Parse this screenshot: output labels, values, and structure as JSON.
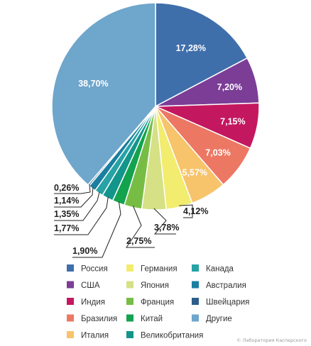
{
  "chart_data": {
    "type": "pie",
    "start": "12 o'clock",
    "direction": "clockwise",
    "slices": [
      {
        "category": "Россия",
        "value": 17.28,
        "label": "17,28%",
        "color": "#3f6fab",
        "label_style": "inside"
      },
      {
        "category": "США",
        "value": 7.2,
        "label": "7,20%",
        "color": "#7b3d96",
        "label_style": "inside"
      },
      {
        "category": "Индия",
        "value": 7.15,
        "label": "7,15%",
        "color": "#c3185f",
        "label_style": "inside"
      },
      {
        "category": "Бразилия",
        "value": 7.03,
        "label": "7,03%",
        "color": "#ec7864",
        "label_style": "inside"
      },
      {
        "category": "Италия",
        "value": 5.57,
        "label": "5,57%",
        "color": "#f7c36b",
        "label_style": "inside"
      },
      {
        "category": "Германия",
        "value": 4.12,
        "label": "4,12%",
        "color": "#f2ec6f",
        "label_style": "callout"
      },
      {
        "category": "Япония",
        "value": 3.78,
        "label": "3,78%",
        "color": "#d5e184",
        "label_style": "callout"
      },
      {
        "category": "Франция",
        "value": 2.75,
        "label": "2,75%",
        "color": "#77bd45",
        "label_style": "callout"
      },
      {
        "category": "Китай",
        "value": 1.9,
        "label": "1,90%",
        "color": "#13a34e",
        "label_style": "callout"
      },
      {
        "category": "Великобритания",
        "value": 1.77,
        "label": "1,77%",
        "color": "#12958b",
        "label_style": "callout"
      },
      {
        "category": "Канада",
        "value": 1.35,
        "label": "1,35%",
        "color": "#27a2a5",
        "label_style": "callout"
      },
      {
        "category": "Австралия",
        "value": 1.14,
        "label": "1,14%",
        "color": "#1a7fa0",
        "label_style": "callout"
      },
      {
        "category": "Швейцария",
        "value": 0.26,
        "label": "0,26%",
        "color": "#2c5e89",
        "label_style": "callout"
      },
      {
        "category": "Другие",
        "value": 38.7,
        "label": "38,70%",
        "color": "#6fa6cb",
        "label_style": "inside"
      }
    ],
    "legend": {
      "placement": "bottom",
      "columns": [
        [
          "Россия",
          "США",
          "Индия",
          "Бразилия",
          "Италия"
        ],
        [
          "Германия",
          "Япония",
          "Франция",
          "Китай",
          "Великобритания"
        ],
        [
          "Канада",
          "Австралия",
          "Швейцария",
          "Другие"
        ]
      ]
    }
  },
  "credit": "© Лаборатория Касперского"
}
